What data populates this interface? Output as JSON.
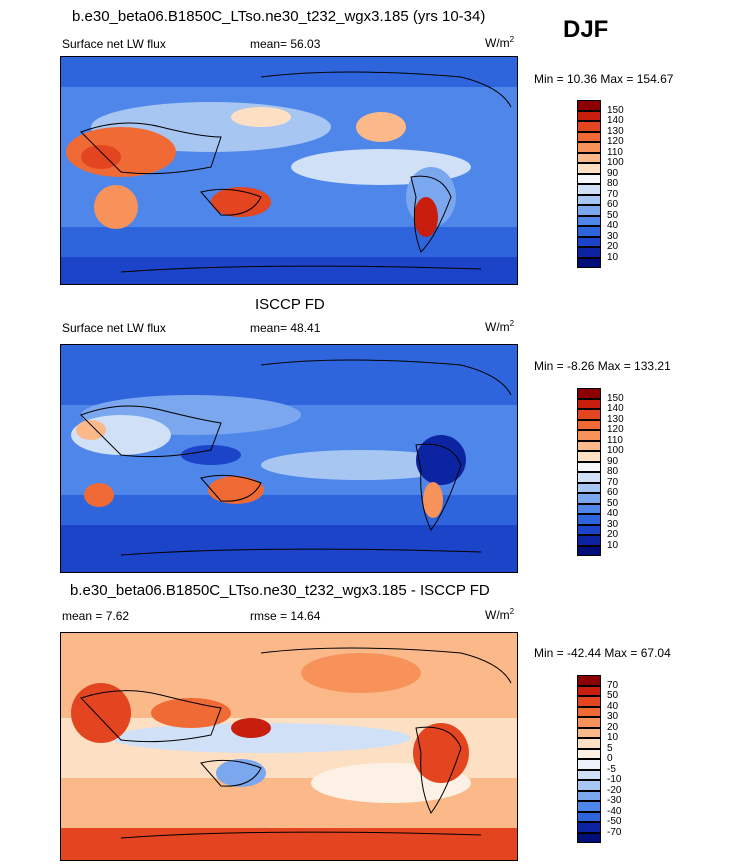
{
  "season": "DJF",
  "panels": [
    {
      "title": "b.e30_beta06.B1850C_LTso.ne30_t232_wgx3.185 (yrs 10-34)",
      "left_label": "Surface net LW flux",
      "center_label": "mean=  56.03",
      "units": "W/m",
      "units_exp": "2",
      "minmax": "Min =  10.36 Max = 154.67",
      "levels": [
        "150",
        "140",
        "130",
        "120",
        "110",
        "100",
        "90",
        "80",
        "70",
        "60",
        "50",
        "40",
        "30",
        "20",
        "10"
      ],
      "colors": [
        "#8b0000",
        "#c81e0e",
        "#e2451f",
        "#f06a35",
        "#f7925a",
        "#fbb98a",
        "#fde0c4",
        "#f6f8fc",
        "#cfe0f7",
        "#a7c6f2",
        "#7ba7ee",
        "#4f86ea",
        "#2e65dd",
        "#1b44c8",
        "#0d24a2",
        "#000e7a"
      ]
    },
    {
      "title": "ISCCP FD",
      "left_label": "Surface net LW flux",
      "center_label": "mean=  48.41",
      "units": "W/m",
      "units_exp": "2",
      "minmax": "Min =  -8.26 Max = 133.21",
      "levels": [
        "150",
        "140",
        "130",
        "120",
        "110",
        "100",
        "90",
        "80",
        "70",
        "60",
        "50",
        "40",
        "30",
        "20",
        "10"
      ],
      "colors": [
        "#8b0000",
        "#c81e0e",
        "#e2451f",
        "#f06a35",
        "#f7925a",
        "#fbb98a",
        "#fde0c4",
        "#f6f8fc",
        "#cfe0f7",
        "#a7c6f2",
        "#7ba7ee",
        "#4f86ea",
        "#2e65dd",
        "#1b44c8",
        "#0d24a2",
        "#000e7a"
      ]
    },
    {
      "title": "b.e30_beta06.B1850C_LTso.ne30_t232_wgx3.185 - ISCCP FD",
      "left_label": "mean =   7.62",
      "center_label": "rmse =  14.64",
      "units": "W/m",
      "units_exp": "2",
      "minmax": "Min = -42.44 Max =  67.04",
      "levels": [
        "70",
        "50",
        "40",
        "30",
        "20",
        "10",
        "5",
        "0",
        "-5",
        "-10",
        "-20",
        "-30",
        "-40",
        "-50",
        "-70"
      ],
      "colors": [
        "#8b0000",
        "#c81e0e",
        "#e2451f",
        "#f06a35",
        "#f7925a",
        "#fbb98a",
        "#fde0c4",
        "#fdf1e6",
        "#eef3fb",
        "#cfe0f7",
        "#a7c6f2",
        "#7ba7ee",
        "#4f86ea",
        "#2e65dd",
        "#0d24a2",
        "#000e7a"
      ]
    }
  ]
}
